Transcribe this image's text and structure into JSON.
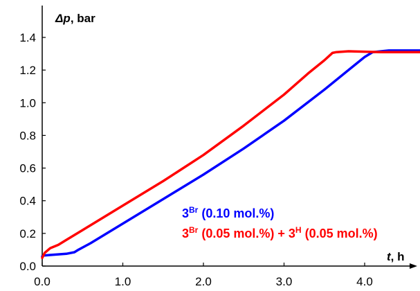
{
  "chart_data": {
    "type": "line",
    "ylabel_var": "Δp",
    "ylabel_unit": ", bar",
    "xlabel_var": "t",
    "xlabel_unit": ", h",
    "xlim": [
      0,
      4.7
    ],
    "ylim": [
      0,
      1.5
    ],
    "x_ticks": [
      "0.0",
      "1.0",
      "2.0",
      "3.0",
      "4.0"
    ],
    "y_ticks": [
      "0.0",
      "0.2",
      "0.4",
      "0.6",
      "0.8",
      "1.0",
      "1.2",
      "1.4"
    ],
    "grid": false,
    "legend_position": "inside-bottom-right",
    "series": [
      {
        "name": "3Br (0.10 mol.%)",
        "label_base": "3",
        "label_sup": "Br",
        "label_rest": " (0.10 mol.%)",
        "color": "#0000ff",
        "x": [
          0.0,
          0.02,
          0.1,
          0.3,
          0.4,
          0.45,
          0.6,
          1.0,
          1.5,
          2.0,
          2.5,
          3.0,
          3.5,
          3.85,
          4.0,
          4.1,
          4.3,
          4.7
        ],
        "y": [
          0.06,
          0.065,
          0.068,
          0.075,
          0.085,
          0.1,
          0.14,
          0.26,
          0.41,
          0.56,
          0.72,
          0.89,
          1.08,
          1.22,
          1.28,
          1.31,
          1.32,
          1.32
        ]
      },
      {
        "name": "3Br (0.05 mol.%) + 3H (0.05 mol.%)",
        "label_base": "3",
        "label_sup": "Br",
        "label_mid": " (0.05 mol.%) + 3",
        "label_sup2": "H",
        "label_rest": " (0.05 mol.%)",
        "color": "#ff0000",
        "x": [
          0.0,
          0.03,
          0.1,
          0.2,
          0.3,
          0.5,
          1.0,
          1.5,
          2.0,
          2.5,
          3.0,
          3.3,
          3.5,
          3.6,
          3.65,
          3.8,
          4.2,
          4.7
        ],
        "y": [
          0.05,
          0.08,
          0.11,
          0.13,
          0.16,
          0.22,
          0.37,
          0.52,
          0.68,
          0.86,
          1.05,
          1.18,
          1.26,
          1.305,
          1.31,
          1.315,
          1.31,
          1.31
        ]
      }
    ]
  }
}
